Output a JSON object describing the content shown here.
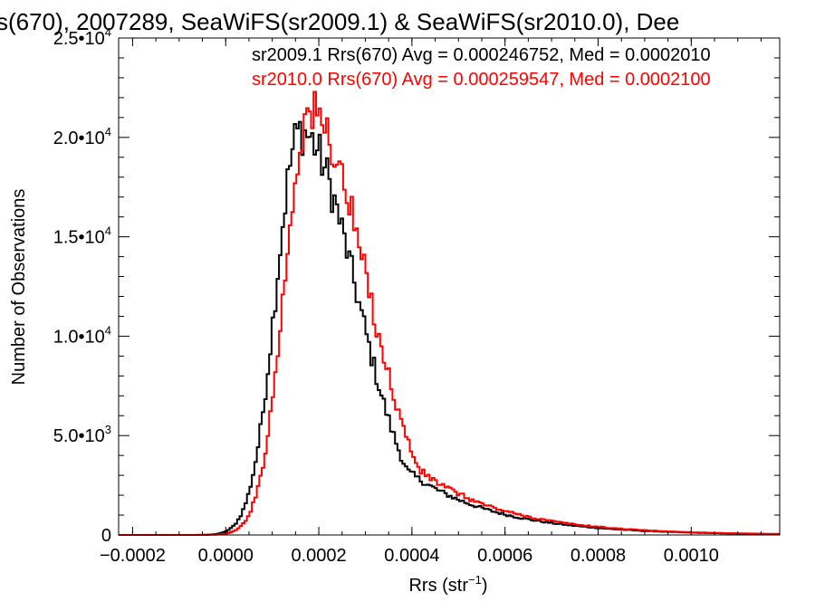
{
  "chart_data": {
    "type": "histogram",
    "title": "s(670), 2007289, SeaWiFS(sr2009.1) & SeaWiFS(sr2010.0), Dee",
    "xlabel": "Rrs (str",
    "xlabel_sup": "−1",
    "xlabel_close": ")",
    "ylabel": "Number of Observations",
    "xlim": [
      -0.00023,
      0.00119
    ],
    "ylim": [
      0,
      25000
    ],
    "x_ticks": [
      -0.0002,
      0.0,
      0.0002,
      0.0004,
      0.0006,
      0.0008,
      0.001
    ],
    "x_tick_labels": [
      "−0.0002",
      "0.0000",
      "0.0002",
      "0.0004",
      "0.0006",
      "0.0008",
      "0.0010"
    ],
    "y_ticks": [
      0,
      5000,
      10000,
      15000,
      20000,
      25000
    ],
    "y_tick_labels": [
      {
        "mant": "0",
        "exp": ""
      },
      {
        "mant": "5.0•10",
        "exp": "3"
      },
      {
        "mant": "1.0•10",
        "exp": "4"
      },
      {
        "mant": "1.5•10",
        "exp": "4"
      },
      {
        "mant": "2.0•10",
        "exp": "4"
      },
      {
        "mant": "2.5•10",
        "exp": "4"
      }
    ],
    "grid": false,
    "legend_position": "top-right",
    "series": [
      {
        "name": "sr2009.1",
        "label": "sr2009.1 Rrs(670) Avg = 0.000246752, Med = 0.0002010",
        "color": "#000000",
        "mode": 0.00016,
        "peak": 20300,
        "sigma_left": 5.2e-05,
        "sigma_right": 0.00012
      },
      {
        "name": "sr2010.0",
        "label": "sr2010.0 Rrs(670) Avg = 0.000259547, Med = 0.0002100",
        "color": "#ff0000",
        "mode": 0.00018,
        "peak": 21200,
        "sigma_left": 5.3e-05,
        "sigma_right": 0.000122
      }
    ]
  }
}
